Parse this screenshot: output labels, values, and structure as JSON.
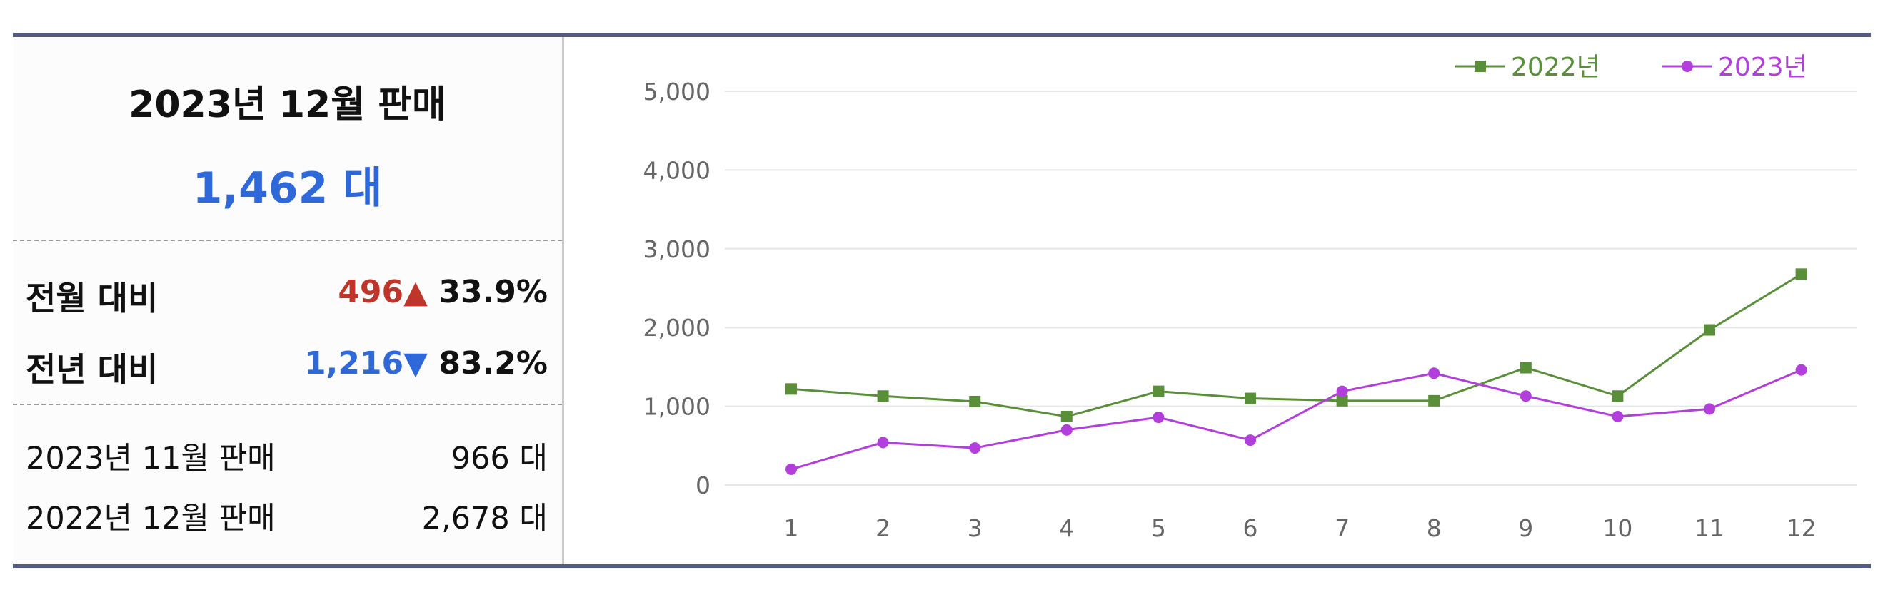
{
  "summary": {
    "title": "2023년 12월 판매",
    "total_value": "1,462 대",
    "mom": {
      "label": "전월 대비",
      "diff": "496",
      "arrow": "▲",
      "percent": "33.9%"
    },
    "yoy": {
      "label": "전년 대비",
      "diff": "1,216",
      "arrow": "▼",
      "percent": "83.2%"
    },
    "prev_month": {
      "label": "2023년 11월 판매",
      "value": "966 대"
    },
    "prev_year": {
      "label": "2022년 12월 판매",
      "value": "2,678 대"
    }
  },
  "colors": {
    "accent_blue": "#2f68d8",
    "up_red": "#c0352a",
    "series_2022": "#5a8f3a",
    "series_2023": "#b23fdc",
    "frame": "#545a80"
  },
  "chart_data": {
    "type": "line",
    "x": [
      1,
      2,
      3,
      4,
      5,
      6,
      7,
      8,
      9,
      10,
      11,
      12
    ],
    "series": [
      {
        "name": "2022년",
        "marker": "square",
        "color": "#5a8f3a",
        "values": [
          1220,
          1130,
          1060,
          870,
          1190,
          1100,
          1070,
          1070,
          1490,
          1130,
          1970,
          2678
        ]
      },
      {
        "name": "2023년",
        "marker": "circle",
        "color": "#b23fdc",
        "values": [
          200,
          540,
          470,
          700,
          860,
          570,
          1190,
          1420,
          1130,
          870,
          966,
          1462
        ]
      }
    ],
    "ylim": [
      0,
      5000
    ],
    "yticks": [
      "0",
      "1,000",
      "2,000",
      "3,000",
      "4,000",
      "5,000"
    ],
    "xticks": [
      "1",
      "2",
      "3",
      "4",
      "5",
      "6",
      "7",
      "8",
      "9",
      "10",
      "11",
      "12"
    ],
    "grid": true,
    "legend_position": "top-right"
  }
}
